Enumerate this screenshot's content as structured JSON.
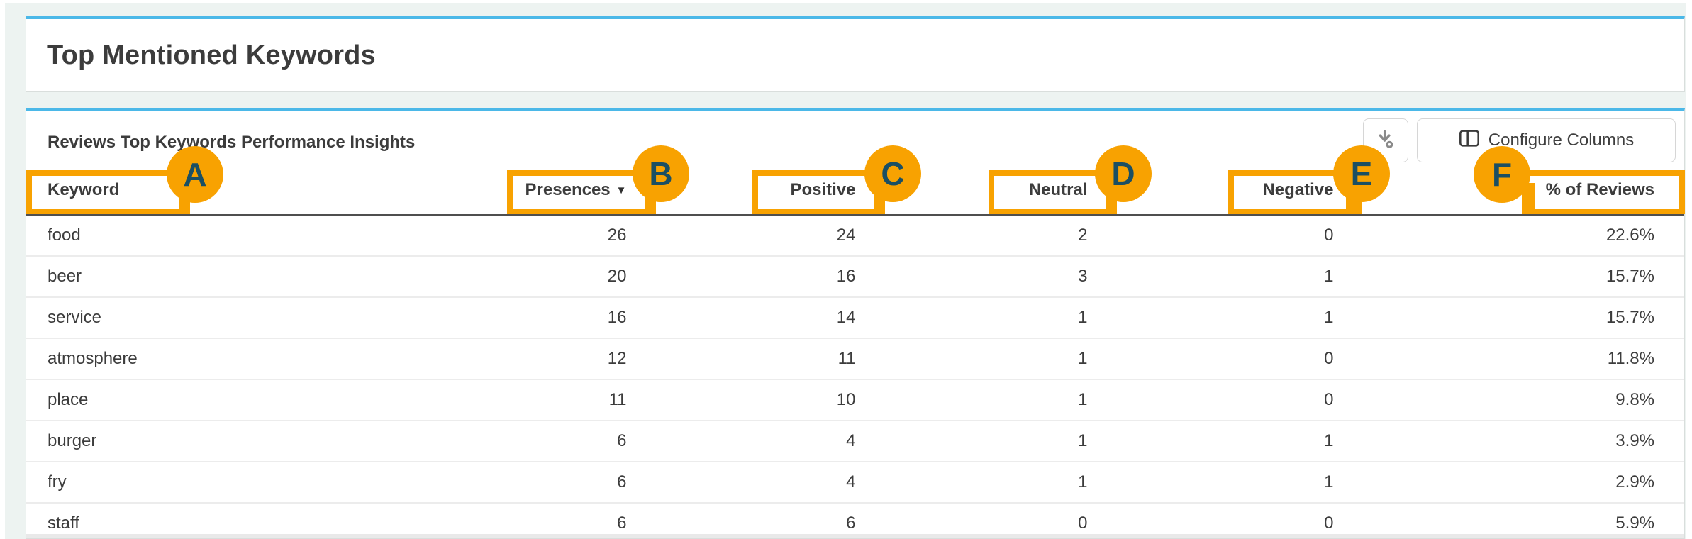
{
  "title_card": {
    "title": "Top Mentioned Keywords"
  },
  "panel": {
    "subtitle": "Reviews Top Keywords Performance Insights",
    "toolbar": {
      "download_icon": "download-icon",
      "configure_label": "Configure Columns",
      "configure_icon": "columns-icon"
    }
  },
  "table": {
    "columns": [
      {
        "key": "keyword",
        "label": "Keyword",
        "align": "left"
      },
      {
        "key": "presences",
        "label": "Presences",
        "align": "right",
        "sorted": "desc"
      },
      {
        "key": "positive",
        "label": "Positive",
        "align": "right"
      },
      {
        "key": "neutral",
        "label": "Neutral",
        "align": "right"
      },
      {
        "key": "negative",
        "label": "Negative",
        "align": "right"
      },
      {
        "key": "pct_of_reviews",
        "label": "% of Reviews",
        "align": "right"
      }
    ],
    "rows": [
      {
        "keyword": "food",
        "presences": "26",
        "positive": "24",
        "neutral": "2",
        "negative": "0",
        "pct_of_reviews": "22.6%"
      },
      {
        "keyword": "beer",
        "presences": "20",
        "positive": "16",
        "neutral": "3",
        "negative": "1",
        "pct_of_reviews": "15.7%"
      },
      {
        "keyword": "service",
        "presences": "16",
        "positive": "14",
        "neutral": "1",
        "negative": "1",
        "pct_of_reviews": "15.7%"
      },
      {
        "keyword": "atmosphere",
        "presences": "12",
        "positive": "11",
        "neutral": "1",
        "negative": "0",
        "pct_of_reviews": "11.8%"
      },
      {
        "keyword": "place",
        "presences": "11",
        "positive": "10",
        "neutral": "1",
        "negative": "0",
        "pct_of_reviews": "9.8%"
      },
      {
        "keyword": "burger",
        "presences": "6",
        "positive": "4",
        "neutral": "1",
        "negative": "1",
        "pct_of_reviews": "3.9%"
      },
      {
        "keyword": "fry",
        "presences": "6",
        "positive": "4",
        "neutral": "1",
        "negative": "1",
        "pct_of_reviews": "2.9%"
      },
      {
        "keyword": "staff",
        "presences": "6",
        "positive": "6",
        "neutral": "0",
        "negative": "0",
        "pct_of_reviews": "5.9%"
      }
    ],
    "sort_caret": "▼"
  },
  "annotations": [
    {
      "letter": "A",
      "target": "keyword-header"
    },
    {
      "letter": "B",
      "target": "presences-header"
    },
    {
      "letter": "C",
      "target": "positive-header"
    },
    {
      "letter": "D",
      "target": "neutral-header"
    },
    {
      "letter": "E",
      "target": "negative-header"
    },
    {
      "letter": "F",
      "target": "pct-of-reviews-header"
    }
  ],
  "colors": {
    "accent_blue": "#4bb8e8",
    "annotation_orange": "#f8a201",
    "annotation_letter": "#1b4f63",
    "page_background": "#edf3f1"
  }
}
